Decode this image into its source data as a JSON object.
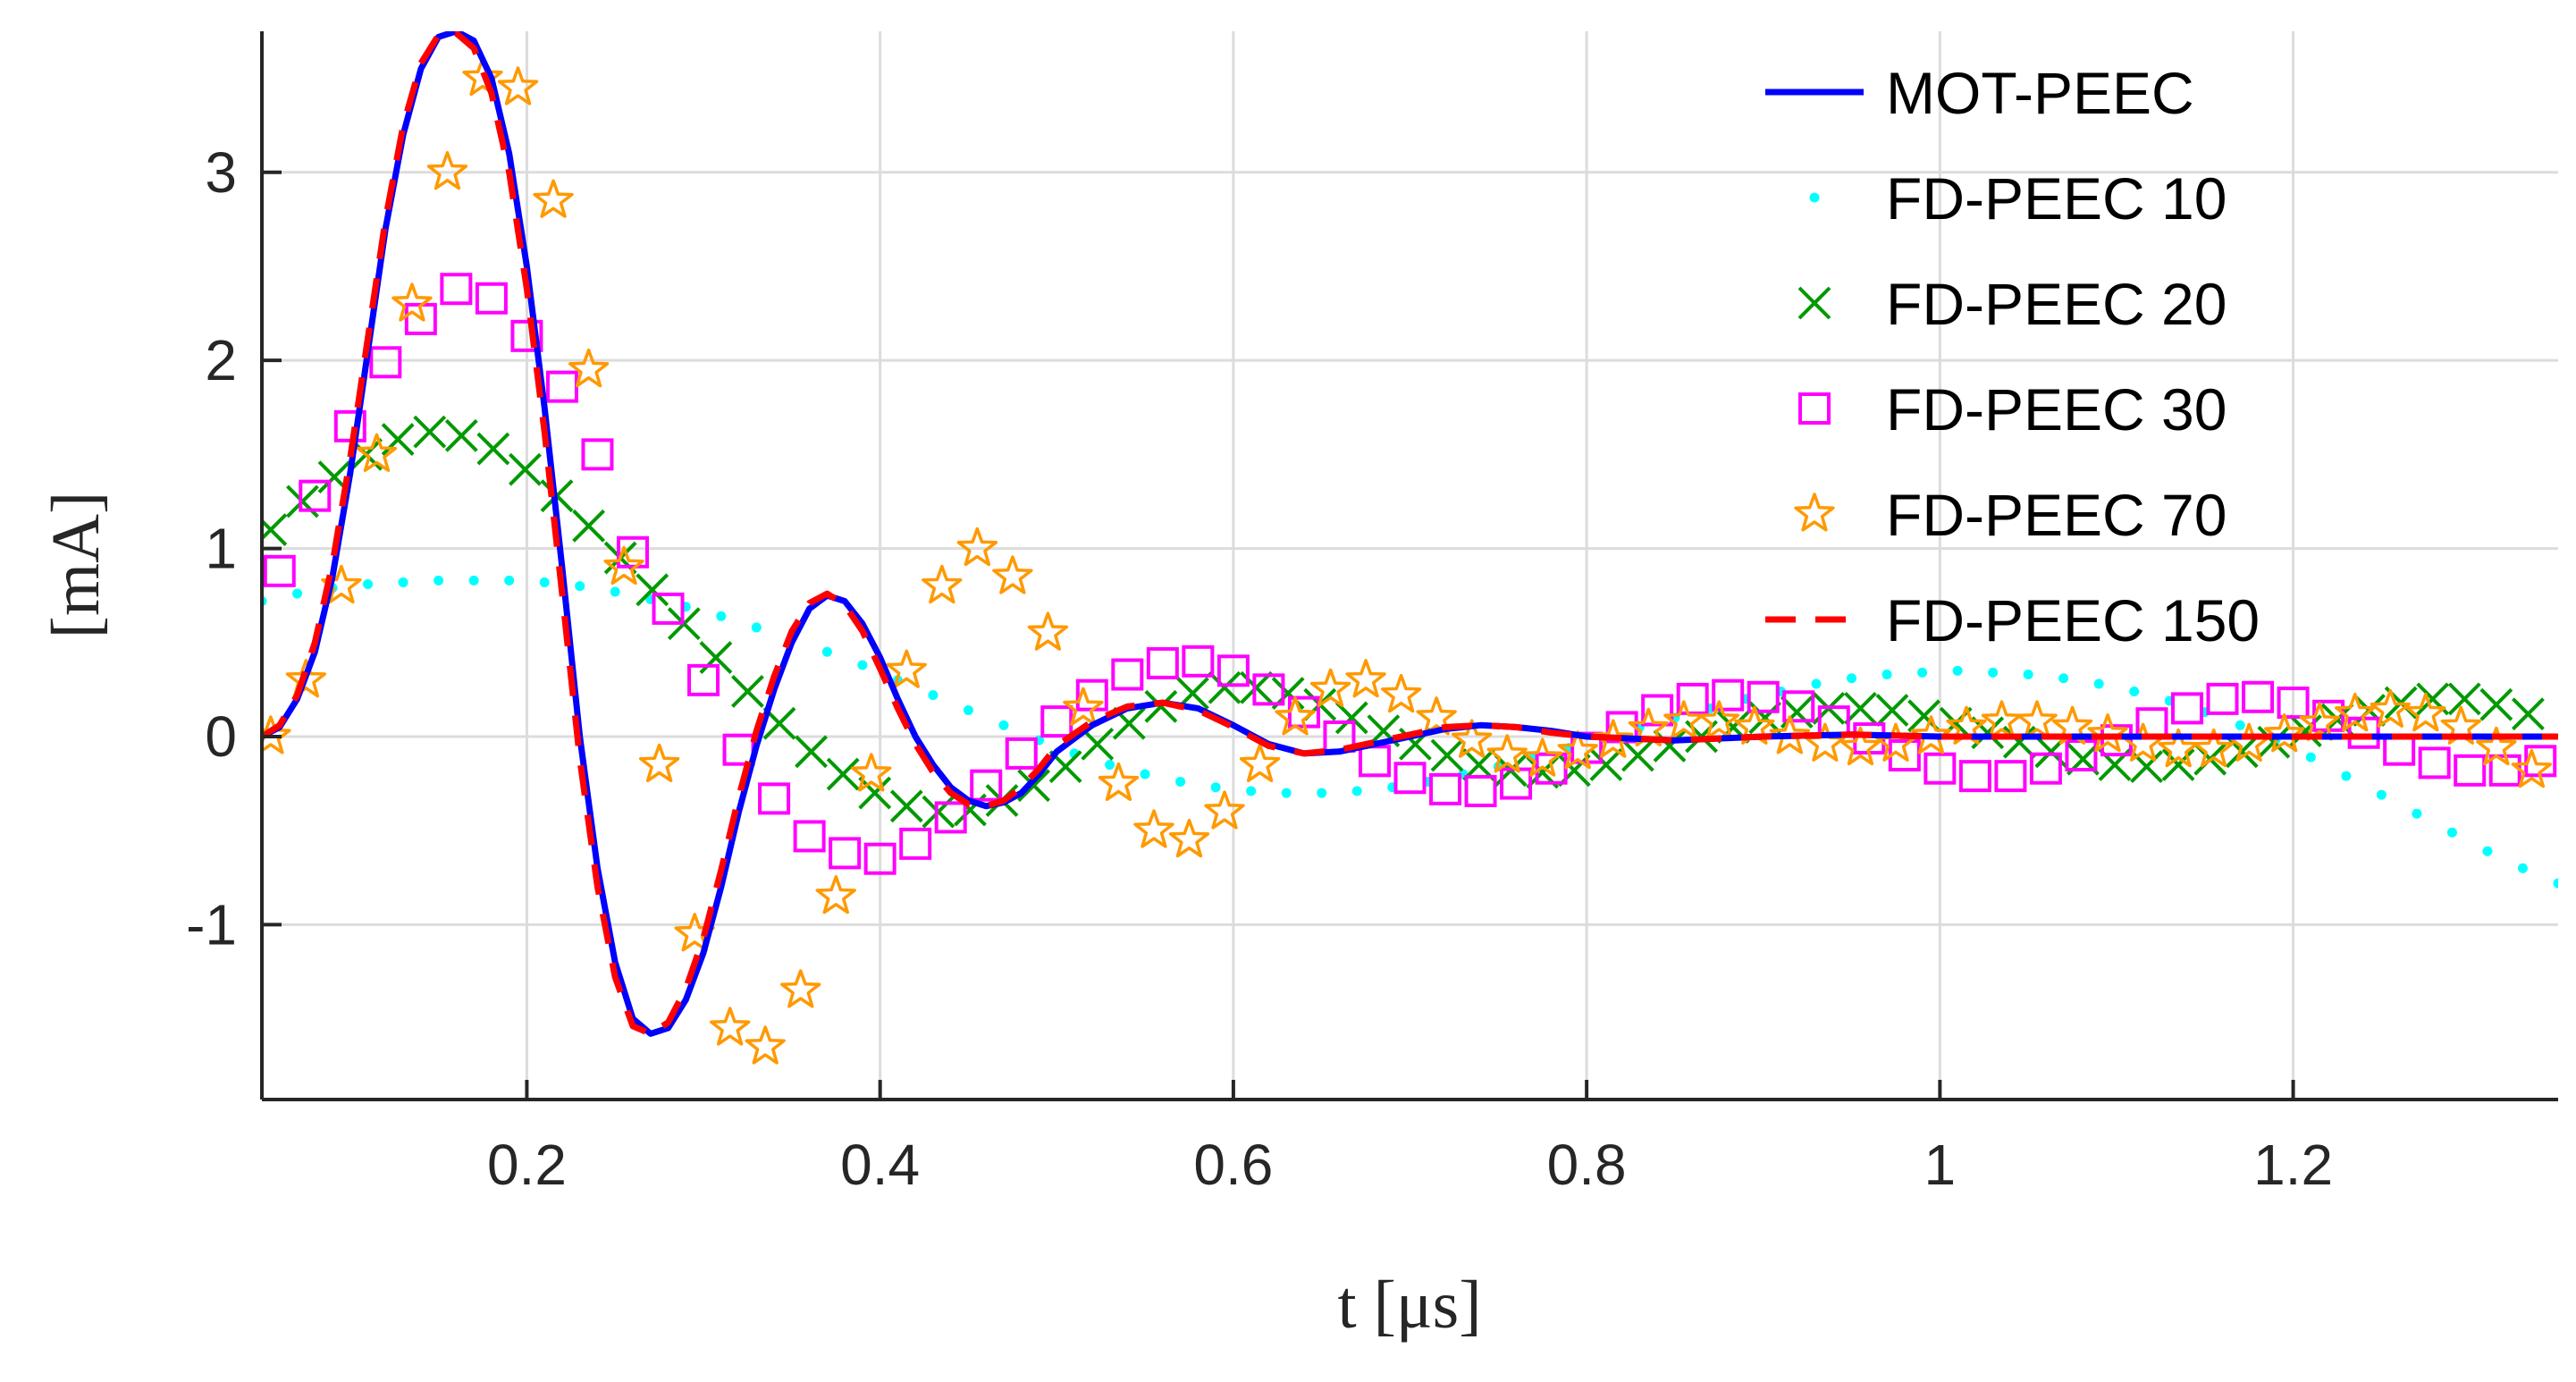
{
  "chart_data": {
    "type": "line",
    "title": "",
    "xlabel": "t [μs]",
    "ylabel": "[mA]",
    "xlim": [
      0.05,
      1.35
    ],
    "ylim": [
      -1.93,
      3.75
    ],
    "xticks": [
      0.2,
      0.4,
      0.6,
      0.8,
      1.0,
      1.2
    ],
    "xtick_labels": [
      "0.2",
      "0.4",
      "0.6",
      "0.8",
      "1",
      "1.2"
    ],
    "yticks": [
      -1,
      0,
      1,
      2,
      3
    ],
    "ytick_labels": [
      "-1",
      "0",
      "1",
      "2",
      "3"
    ],
    "grid": true,
    "legend_position": "top-right",
    "series": [
      {
        "name": "MOT-PEEC",
        "style": "solid-line",
        "color": "#0000ff",
        "x": [
          0.05,
          0.06,
          0.07,
          0.08,
          0.09,
          0.1,
          0.11,
          0.12,
          0.13,
          0.14,
          0.15,
          0.16,
          0.17,
          0.18,
          0.19,
          0.2,
          0.21,
          0.22,
          0.23,
          0.24,
          0.25,
          0.26,
          0.27,
          0.28,
          0.29,
          0.3,
          0.31,
          0.32,
          0.33,
          0.34,
          0.35,
          0.36,
          0.37,
          0.38,
          0.39,
          0.4,
          0.41,
          0.42,
          0.43,
          0.44,
          0.45,
          0.46,
          0.47,
          0.48,
          0.49,
          0.5,
          0.52,
          0.54,
          0.56,
          0.58,
          0.6,
          0.62,
          0.64,
          0.66,
          0.68,
          0.7,
          0.72,
          0.74,
          0.76,
          0.78,
          0.8,
          0.85,
          0.9,
          0.95,
          1.0,
          1.05,
          1.1,
          1.15,
          1.2,
          1.25,
          1.3,
          1.35
        ],
        "y": [
          0.0,
          0.05,
          0.2,
          0.45,
          0.85,
          1.4,
          2.05,
          2.7,
          3.2,
          3.55,
          3.72,
          3.75,
          3.7,
          3.5,
          3.1,
          2.5,
          1.75,
          0.9,
          0.0,
          -0.7,
          -1.2,
          -1.5,
          -1.58,
          -1.55,
          -1.4,
          -1.15,
          -0.8,
          -0.4,
          -0.05,
          0.25,
          0.5,
          0.68,
          0.75,
          0.72,
          0.6,
          0.42,
          0.2,
          0.0,
          -0.15,
          -0.27,
          -0.34,
          -0.37,
          -0.35,
          -0.3,
          -0.2,
          -0.08,
          0.06,
          0.15,
          0.18,
          0.15,
          0.06,
          -0.04,
          -0.09,
          -0.08,
          -0.04,
          0.0,
          0.04,
          0.06,
          0.05,
          0.03,
          0.0,
          -0.02,
          0.0,
          0.01,
          0.0,
          0.0,
          0.0,
          0.0,
          0.0,
          0.0,
          0.0,
          0.0
        ]
      },
      {
        "name": "FD-PEEC 10",
        "style": "dots",
        "color": "#00ffff",
        "x": [
          0.05,
          0.07,
          0.09,
          0.11,
          0.13,
          0.15,
          0.17,
          0.19,
          0.21,
          0.23,
          0.25,
          0.27,
          0.29,
          0.31,
          0.33,
          0.35,
          0.37,
          0.39,
          0.41,
          0.43,
          0.45,
          0.47,
          0.49,
          0.51,
          0.53,
          0.55,
          0.57,
          0.59,
          0.61,
          0.63,
          0.65,
          0.67,
          0.69,
          0.71,
          0.73,
          0.75,
          0.77,
          0.79,
          0.81,
          0.83,
          0.85,
          0.87,
          0.89,
          0.91,
          0.93,
          0.95,
          0.97,
          0.99,
          1.01,
          1.03,
          1.05,
          1.07,
          1.09,
          1.11,
          1.13,
          1.15,
          1.17,
          1.19,
          1.21,
          1.23,
          1.25,
          1.27,
          1.29,
          1.31,
          1.33,
          1.35
        ],
        "y": [
          0.72,
          0.76,
          0.79,
          0.81,
          0.82,
          0.83,
          0.83,
          0.83,
          0.82,
          0.8,
          0.77,
          0.73,
          0.69,
          0.64,
          0.58,
          0.52,
          0.45,
          0.38,
          0.3,
          0.22,
          0.14,
          0.06,
          -0.02,
          -0.09,
          -0.15,
          -0.2,
          -0.24,
          -0.27,
          -0.29,
          -0.3,
          -0.3,
          -0.29,
          -0.27,
          -0.24,
          -0.2,
          -0.16,
          -0.11,
          -0.06,
          -0.01,
          0.05,
          0.1,
          0.15,
          0.2,
          0.24,
          0.28,
          0.31,
          0.33,
          0.34,
          0.35,
          0.34,
          0.33,
          0.31,
          0.28,
          0.24,
          0.19,
          0.13,
          0.06,
          -0.02,
          -0.11,
          -0.21,
          -0.31,
          -0.41,
          -0.51,
          -0.61,
          -0.7,
          -0.78
        ]
      },
      {
        "name": "FD-PEEC 20",
        "style": "x-markers",
        "color": "#009900",
        "x": [
          0.055,
          0.073,
          0.091,
          0.109,
          0.127,
          0.145,
          0.163,
          0.181,
          0.199,
          0.217,
          0.235,
          0.253,
          0.271,
          0.289,
          0.307,
          0.325,
          0.343,
          0.361,
          0.379,
          0.397,
          0.415,
          0.433,
          0.451,
          0.469,
          0.487,
          0.505,
          0.523,
          0.541,
          0.559,
          0.577,
          0.595,
          0.613,
          0.631,
          0.649,
          0.667,
          0.685,
          0.703,
          0.721,
          0.739,
          0.757,
          0.775,
          0.793,
          0.811,
          0.829,
          0.847,
          0.865,
          0.883,
          0.901,
          0.919,
          0.937,
          0.955,
          0.973,
          0.991,
          1.009,
          1.027,
          1.045,
          1.063,
          1.081,
          1.099,
          1.117,
          1.135,
          1.153,
          1.171,
          1.189,
          1.207,
          1.225,
          1.243,
          1.261,
          1.279,
          1.297,
          1.315,
          1.333
        ],
        "y": [
          1.1,
          1.25,
          1.38,
          1.5,
          1.58,
          1.62,
          1.6,
          1.53,
          1.42,
          1.28,
          1.12,
          0.95,
          0.78,
          0.6,
          0.42,
          0.24,
          0.07,
          -0.08,
          -0.2,
          -0.3,
          -0.37,
          -0.4,
          -0.39,
          -0.34,
          -0.26,
          -0.16,
          -0.04,
          0.07,
          0.16,
          0.23,
          0.26,
          0.26,
          0.23,
          0.17,
          0.1,
          0.03,
          -0.04,
          -0.1,
          -0.15,
          -0.18,
          -0.19,
          -0.18,
          -0.15,
          -0.1,
          -0.05,
          0.0,
          0.05,
          0.1,
          0.13,
          0.15,
          0.15,
          0.14,
          0.11,
          0.07,
          0.02,
          -0.03,
          -0.08,
          -0.12,
          -0.15,
          -0.16,
          -0.15,
          -0.12,
          -0.08,
          -0.03,
          0.03,
          0.09,
          0.14,
          0.18,
          0.2,
          0.2,
          0.17,
          0.12
        ]
      },
      {
        "name": "FD-PEEC 30",
        "style": "square-markers",
        "color": "#ff00ff",
        "x": [
          0.06,
          0.08,
          0.1,
          0.12,
          0.14,
          0.16,
          0.18,
          0.2,
          0.22,
          0.24,
          0.26,
          0.28,
          0.3,
          0.32,
          0.34,
          0.36,
          0.38,
          0.4,
          0.42,
          0.44,
          0.46,
          0.48,
          0.5,
          0.52,
          0.54,
          0.56,
          0.58,
          0.6,
          0.62,
          0.64,
          0.66,
          0.68,
          0.7,
          0.72,
          0.74,
          0.76,
          0.78,
          0.8,
          0.82,
          0.84,
          0.86,
          0.88,
          0.9,
          0.92,
          0.94,
          0.96,
          0.98,
          1.0,
          1.02,
          1.04,
          1.06,
          1.08,
          1.1,
          1.12,
          1.14,
          1.16,
          1.18,
          1.2,
          1.22,
          1.24,
          1.26,
          1.28,
          1.3,
          1.32,
          1.34
        ],
        "y": [
          0.88,
          1.28,
          1.65,
          1.99,
          2.22,
          2.38,
          2.33,
          2.13,
          1.86,
          1.5,
          0.98,
          0.68,
          0.3,
          -0.07,
          -0.33,
          -0.53,
          -0.62,
          -0.65,
          -0.57,
          -0.43,
          -0.26,
          -0.09,
          0.08,
          0.22,
          0.33,
          0.39,
          0.4,
          0.35,
          0.25,
          0.13,
          0.0,
          -0.13,
          -0.22,
          -0.28,
          -0.29,
          -0.25,
          -0.17,
          -0.06,
          0.05,
          0.14,
          0.2,
          0.22,
          0.21,
          0.16,
          0.08,
          -0.01,
          -0.1,
          -0.17,
          -0.21,
          -0.21,
          -0.17,
          -0.1,
          -0.02,
          0.07,
          0.15,
          0.2,
          0.21,
          0.18,
          0.11,
          0.02,
          -0.07,
          -0.14,
          -0.18,
          -0.18,
          -0.13
        ]
      },
      {
        "name": "FD-PEEC 70",
        "style": "star-markers",
        "color": "#ff9900",
        "x": [
          0.055,
          0.075,
          0.095,
          0.115,
          0.135,
          0.155,
          0.175,
          0.195,
          0.215,
          0.235,
          0.255,
          0.275,
          0.295,
          0.315,
          0.335,
          0.355,
          0.375,
          0.395,
          0.415,
          0.435,
          0.455,
          0.475,
          0.495,
          0.515,
          0.535,
          0.555,
          0.575,
          0.595,
          0.615,
          0.635,
          0.655,
          0.675,
          0.695,
          0.715,
          0.735,
          0.755,
          0.775,
          0.795,
          0.815,
          0.835,
          0.855,
          0.875,
          0.895,
          0.915,
          0.935,
          0.955,
          0.975,
          0.995,
          1.015,
          1.035,
          1.055,
          1.075,
          1.095,
          1.115,
          1.135,
          1.155,
          1.175,
          1.195,
          1.215,
          1.235,
          1.255,
          1.275,
          1.295,
          1.315,
          1.335
        ],
        "y": [
          0.0,
          0.3,
          0.8,
          1.5,
          2.3,
          3.0,
          3.5,
          3.45,
          2.85,
          1.95,
          0.9,
          -0.15,
          -1.05,
          -1.55,
          -1.65,
          -1.35,
          -0.85,
          -0.2,
          0.35,
          0.8,
          1.0,
          0.85,
          0.55,
          0.15,
          -0.25,
          -0.5,
          -0.55,
          -0.4,
          -0.15,
          0.1,
          0.25,
          0.3,
          0.22,
          0.1,
          -0.02,
          -0.1,
          -0.12,
          -0.08,
          -0.02,
          0.04,
          0.08,
          0.08,
          0.05,
          0.0,
          -0.04,
          -0.06,
          -0.04,
          0.0,
          0.05,
          0.08,
          0.08,
          0.05,
          0.01,
          -0.04,
          -0.07,
          -0.07,
          -0.04,
          0.01,
          0.07,
          0.12,
          0.14,
          0.12,
          0.05,
          -0.06,
          -0.18
        ]
      },
      {
        "name": "FD-PEEC 150",
        "style": "dashed-line",
        "color": "#ff0000",
        "x": [
          0.05,
          0.06,
          0.07,
          0.08,
          0.09,
          0.1,
          0.11,
          0.12,
          0.13,
          0.14,
          0.15,
          0.16,
          0.17,
          0.18,
          0.19,
          0.2,
          0.21,
          0.22,
          0.23,
          0.24,
          0.25,
          0.26,
          0.27,
          0.28,
          0.29,
          0.3,
          0.31,
          0.32,
          0.33,
          0.34,
          0.35,
          0.36,
          0.37,
          0.38,
          0.39,
          0.4,
          0.41,
          0.42,
          0.43,
          0.44,
          0.45,
          0.46,
          0.47,
          0.48,
          0.49,
          0.5,
          0.52,
          0.54,
          0.56,
          0.58,
          0.6,
          0.62,
          0.64,
          0.66,
          0.68,
          0.7,
          0.72,
          0.74,
          0.76,
          0.78,
          0.8,
          0.85,
          0.9,
          0.95,
          1.0,
          1.05,
          1.1,
          1.15,
          1.2,
          1.25,
          1.3,
          1.35
        ],
        "y": [
          0.0,
          0.06,
          0.22,
          0.5,
          0.92,
          1.48,
          2.12,
          2.75,
          3.25,
          3.58,
          3.73,
          3.74,
          3.66,
          3.42,
          3.0,
          2.38,
          1.62,
          0.76,
          -0.12,
          -0.8,
          -1.28,
          -1.54,
          -1.58,
          -1.52,
          -1.34,
          -1.07,
          -0.71,
          -0.32,
          0.03,
          0.32,
          0.56,
          0.71,
          0.76,
          0.7,
          0.56,
          0.36,
          0.15,
          -0.04,
          -0.19,
          -0.3,
          -0.36,
          -0.37,
          -0.34,
          -0.27,
          -0.17,
          -0.05,
          0.08,
          0.16,
          0.18,
          0.14,
          0.05,
          -0.05,
          -0.09,
          -0.07,
          -0.03,
          0.01,
          0.05,
          0.06,
          0.05,
          0.02,
          0.0,
          -0.02,
          0.0,
          0.01,
          0.0,
          0.0,
          0.0,
          0.0,
          0.0,
          0.0,
          0.0,
          0.0
        ]
      }
    ]
  }
}
